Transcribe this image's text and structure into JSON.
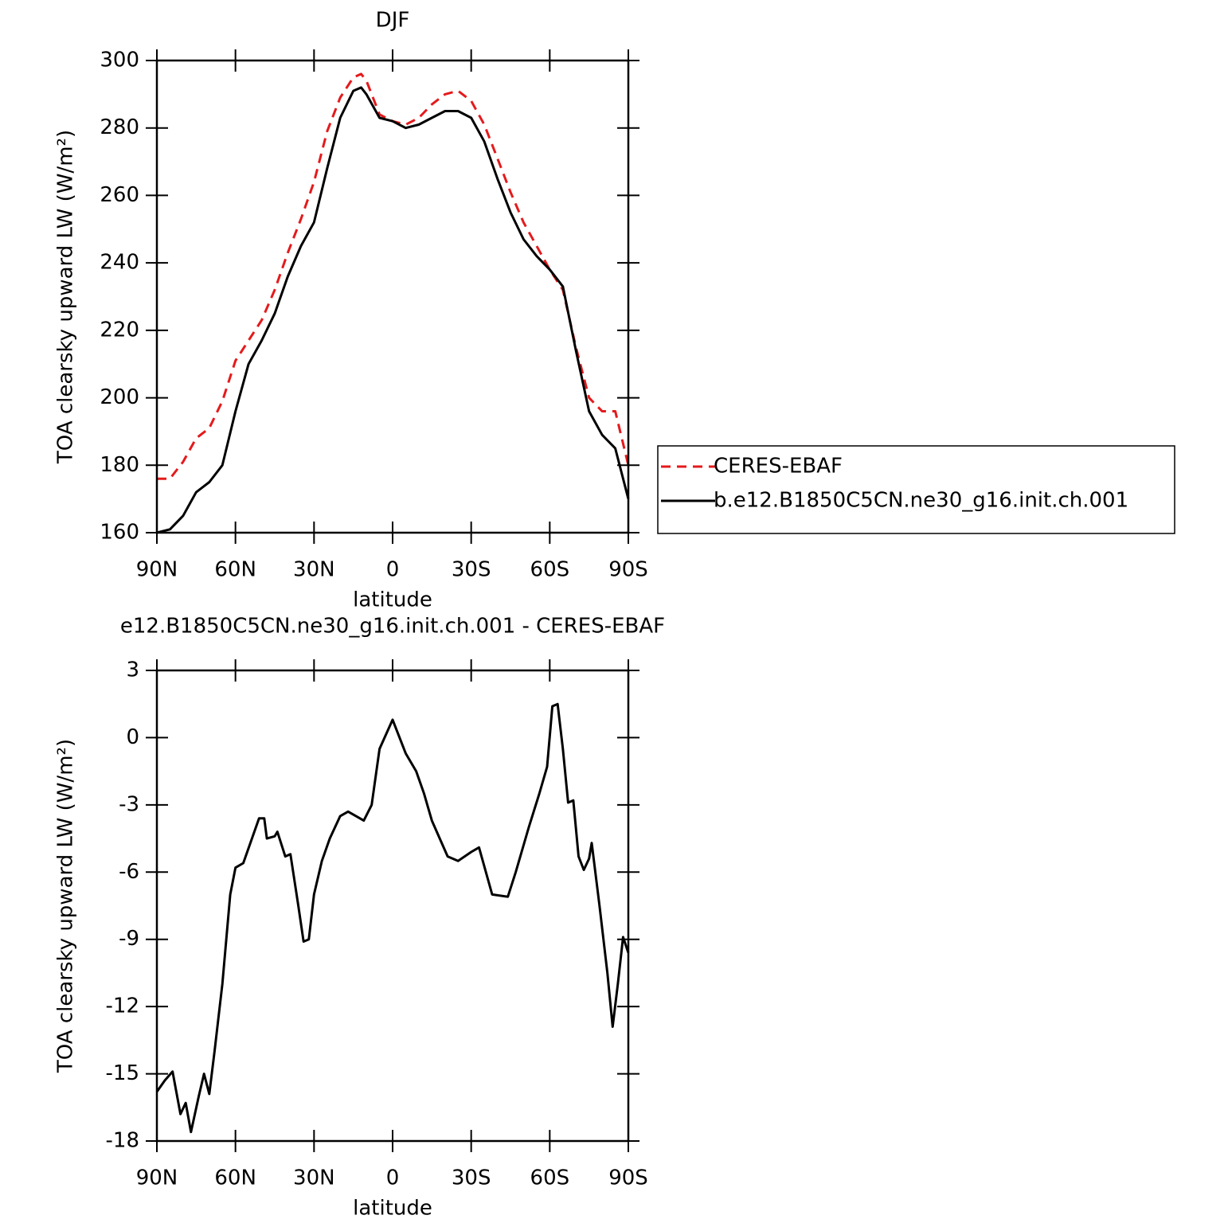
{
  "chart_data": [
    {
      "type": "line",
      "title": "DJF",
      "xlabel": "latitude",
      "ylabel": "TOA clearsky upward LW (W/m²)",
      "xlim": [
        90,
        -90
      ],
      "ylim": [
        160,
        300
      ],
      "xticks": [
        {
          "value": 90,
          "label": "90N"
        },
        {
          "value": 60,
          "label": "60N"
        },
        {
          "value": 30,
          "label": "30N"
        },
        0,
        {
          "value": -30,
          "label": "30S"
        },
        {
          "value": -60,
          "label": "60S"
        },
        {
          "value": -90,
          "label": "90S"
        }
      ],
      "yticks": [
        160,
        180,
        200,
        220,
        240,
        260,
        280,
        300
      ],
      "legend": "right",
      "x": [
        90,
        85,
        80,
        75,
        70,
        65,
        60,
        55,
        50,
        45,
        40,
        35,
        30,
        25,
        20,
        15,
        12,
        10,
        5,
        0,
        -5,
        -10,
        -15,
        -20,
        -25,
        -30,
        -35,
        -40,
        -45,
        -50,
        -55,
        -60,
        -65,
        -70,
        -75,
        -80,
        -85,
        -90
      ],
      "series": [
        {
          "name": "CERES-EBAF",
          "color": "#e41a1c",
          "dashed": true,
          "values": [
            176,
            176,
            181,
            188,
            191,
            199,
            211,
            217,
            223,
            232,
            243,
            253,
            264,
            279,
            289,
            295,
            296,
            294,
            284,
            282,
            281,
            283,
            287,
            290,
            291,
            288,
            281,
            271,
            261,
            252,
            245,
            238,
            232,
            215,
            200,
            196,
            196,
            180
          ]
        },
        {
          "name": "b.e12.B1850C5CN.ne30_g16.init.ch.001",
          "color": "#000000",
          "dashed": false,
          "values": [
            160,
            161,
            165,
            172,
            175,
            180,
            196,
            210,
            217,
            225,
            236,
            245,
            252,
            268,
            283,
            291,
            292,
            290,
            283,
            282,
            280,
            281,
            283,
            285,
            285,
            283,
            276,
            265,
            255,
            247,
            242,
            238,
            233,
            214,
            196,
            189,
            185,
            170
          ]
        }
      ]
    },
    {
      "type": "line",
      "title": "e12.B1850C5CN.ne30_g16.init.ch.001 - CERES-EBAF",
      "xlabel": "latitude",
      "ylabel": "TOA clearsky upward LW (W/m²)",
      "xlim": [
        90,
        -90
      ],
      "ylim": [
        -18,
        3
      ],
      "xticks": [
        {
          "value": 90,
          "label": "90N"
        },
        {
          "value": 60,
          "label": "60N"
        },
        {
          "value": 30,
          "label": "30N"
        },
        0,
        {
          "value": -30,
          "label": "30S"
        },
        {
          "value": -60,
          "label": "60S"
        },
        {
          "value": -90,
          "label": "90S"
        }
      ],
      "yticks": [
        -18,
        -15,
        -12,
        -9,
        -6,
        -3,
        0,
        3
      ],
      "x": [
        90,
        87,
        84,
        81,
        79,
        77,
        74,
        72,
        70,
        68,
        65,
        62,
        60,
        57,
        54,
        51,
        49,
        48,
        45,
        44,
        41,
        39,
        36,
        34,
        32,
        30,
        27,
        24,
        20,
        17,
        14,
        11,
        8,
        5,
        0,
        -5,
        -9,
        -12,
        -15,
        -18,
        -21,
        -25,
        -30,
        -33,
        -38,
        -44,
        -47,
        -52,
        -56,
        -59,
        -61,
        -63,
        -65,
        -67,
        -69,
        -71,
        -73,
        -75,
        -76,
        -79,
        -82,
        -84,
        -86,
        -88,
        -90
      ],
      "series": [
        {
          "color": "#000000",
          "dashed": false,
          "values": [
            -15.8,
            -15.3,
            -14.9,
            -16.8,
            -16.3,
            -17.6,
            -16,
            -15,
            -15.9,
            -14,
            -11,
            -7,
            -5.8,
            -5.6,
            -4.6,
            -3.6,
            -3.6,
            -4.5,
            -4.4,
            -4.2,
            -5.3,
            -5.2,
            -7.5,
            -9.1,
            -9,
            -7,
            -5.5,
            -4.5,
            -3.5,
            -3.3,
            -3.5,
            -3.7,
            -3,
            -0.5,
            0.8,
            -0.7,
            -1.5,
            -2.5,
            -3.7,
            -4.5,
            -5.3,
            -5.5,
            -5.1,
            -4.9,
            -7,
            -7.1,
            -6,
            -4,
            -2.5,
            -1.3,
            1.4,
            1.5,
            -0.5,
            -2.9,
            -2.8,
            -5.3,
            -5.9,
            -5.4,
            -4.7,
            -7.5,
            -10.5,
            -12.9,
            -11,
            -8.9,
            -9.6
          ]
        }
      ]
    }
  ]
}
